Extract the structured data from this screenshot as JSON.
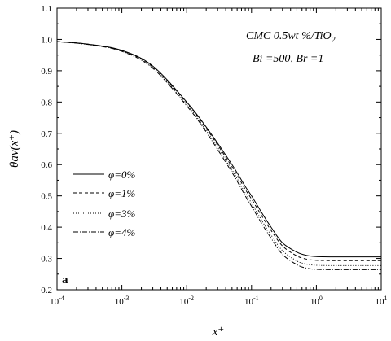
{
  "chart_data": {
    "type": "line",
    "xscale": "log",
    "xlim": [
      0.0001,
      10
    ],
    "ylim": [
      0.2,
      1.1
    ],
    "grid": false,
    "xlabel": "x⁺",
    "ylabel": "θav(x⁺)",
    "x_ticks": [
      {
        "value": 0.0001,
        "base": "10",
        "exp": "-4"
      },
      {
        "value": 0.001,
        "base": "10",
        "exp": "-3"
      },
      {
        "value": 0.01,
        "base": "10",
        "exp": "-2"
      },
      {
        "value": 0.1,
        "base": "10",
        "exp": "-1"
      },
      {
        "value": 1,
        "base": "10",
        "exp": "0"
      },
      {
        "value": 10,
        "base": "10",
        "exp": "1"
      }
    ],
    "y_ticks": [
      "0.2",
      "0.3",
      "0.4",
      "0.5",
      "0.6",
      "0.7",
      "0.8",
      "0.9",
      "1.0",
      "1.1"
    ],
    "annotations": {
      "line1": "CMC 0.5wt %/TiO",
      "line1_sub": "2",
      "line2": "Bi =500, Br =1",
      "panel": "a"
    },
    "legend_position": "left-middle",
    "series": [
      {
        "name": "φ=0%",
        "dash": "solid",
        "x": [
          0.0001,
          0.0003,
          0.001,
          0.003,
          0.01,
          0.02,
          0.05,
          0.08,
          0.1,
          0.15,
          0.2,
          0.3,
          0.5,
          0.7,
          1,
          2,
          5,
          10
        ],
        "y": [
          0.993,
          0.985,
          0.965,
          0.915,
          0.8,
          0.72,
          0.6,
          0.53,
          0.5,
          0.44,
          0.4,
          0.35,
          0.32,
          0.31,
          0.306,
          0.305,
          0.305,
          0.305
        ]
      },
      {
        "name": "φ=1%",
        "dash": "dashed",
        "x": [
          0.0001,
          0.0003,
          0.001,
          0.003,
          0.01,
          0.02,
          0.05,
          0.08,
          0.1,
          0.15,
          0.2,
          0.3,
          0.5,
          0.7,
          1,
          2,
          5,
          10
        ],
        "y": [
          0.993,
          0.985,
          0.964,
          0.913,
          0.797,
          0.716,
          0.593,
          0.521,
          0.49,
          0.43,
          0.39,
          0.34,
          0.308,
          0.298,
          0.294,
          0.293,
          0.293,
          0.293
        ]
      },
      {
        "name": "φ=3%",
        "dash": "dotted",
        "x": [
          0.0001,
          0.0003,
          0.001,
          0.003,
          0.01,
          0.02,
          0.05,
          0.08,
          0.1,
          0.15,
          0.2,
          0.3,
          0.5,
          0.7,
          1,
          2,
          5,
          10
        ],
        "y": [
          0.993,
          0.984,
          0.963,
          0.91,
          0.792,
          0.709,
          0.583,
          0.509,
          0.477,
          0.415,
          0.375,
          0.325,
          0.292,
          0.282,
          0.278,
          0.277,
          0.277,
          0.277
        ]
      },
      {
        "name": "φ=4%",
        "dash": "dashdot",
        "x": [
          0.0001,
          0.0003,
          0.001,
          0.003,
          0.01,
          0.02,
          0.05,
          0.08,
          0.1,
          0.15,
          0.2,
          0.3,
          0.5,
          0.7,
          1,
          2,
          5,
          10
        ],
        "y": [
          0.993,
          0.984,
          0.962,
          0.908,
          0.788,
          0.704,
          0.575,
          0.5,
          0.467,
          0.405,
          0.365,
          0.313,
          0.28,
          0.269,
          0.265,
          0.264,
          0.264,
          0.264
        ]
      }
    ]
  }
}
